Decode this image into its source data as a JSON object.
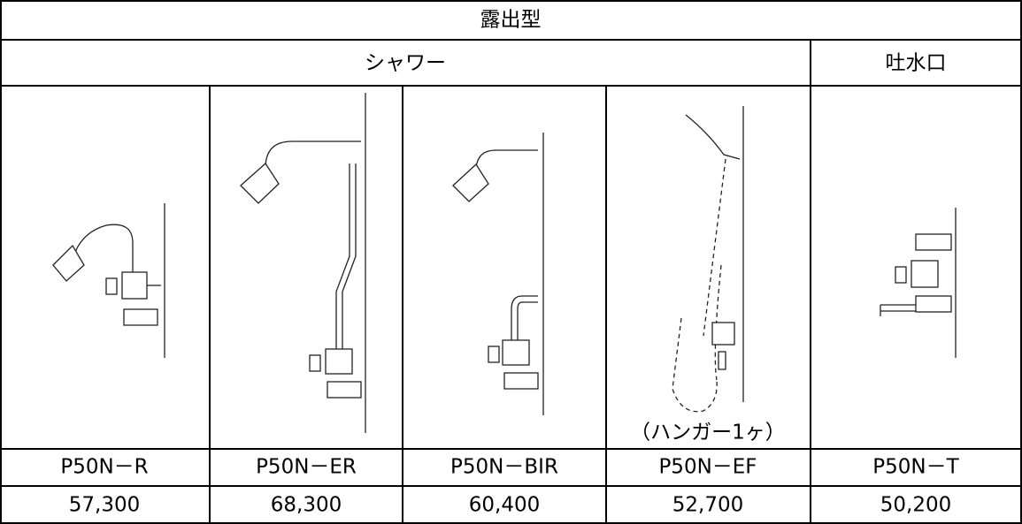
{
  "header": {
    "title": "露出型"
  },
  "groups": [
    "シャワー",
    "吐水口"
  ],
  "note": "（ハンガー1ヶ）",
  "table": {
    "models": [
      "P50N－R",
      "P50N－ER",
      "P50N－BIR",
      "P50N－EF",
      "P50N－T"
    ],
    "prices": [
      "57,300",
      "68,300",
      "60,400",
      "52,700",
      "50,200"
    ]
  }
}
